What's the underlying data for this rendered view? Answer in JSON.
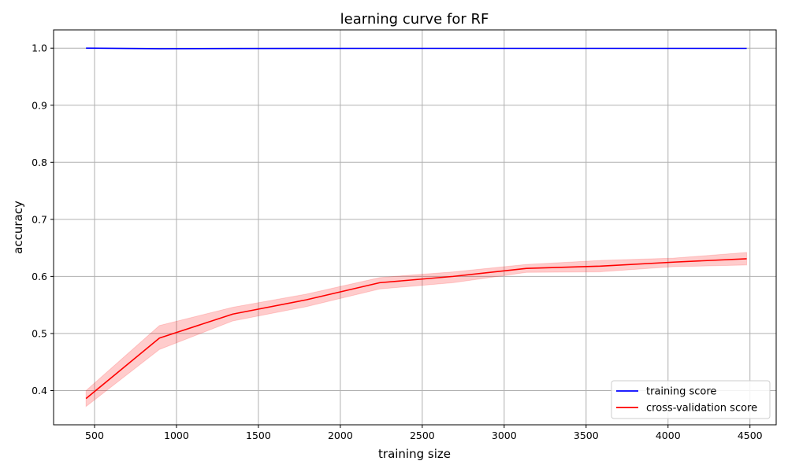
{
  "chart_data": {
    "type": "line",
    "title": "learning curve for RF",
    "xlabel": "training size",
    "ylabel": "accuracy",
    "xlim": [
      250,
      4660
    ],
    "ylim": [
      0.34,
      1.032
    ],
    "x_ticks": [
      500,
      1000,
      1500,
      2000,
      2500,
      3000,
      3500,
      4000,
      4500
    ],
    "y_ticks": [
      0.4,
      0.5,
      0.6,
      0.7,
      0.8,
      0.9,
      1.0
    ],
    "grid": true,
    "legend_position": "lower-right",
    "x": [
      448,
      896,
      1344,
      1792,
      2240,
      2688,
      3136,
      3584,
      4032,
      4480
    ],
    "series": [
      {
        "name": "training score",
        "color": "#0000ff",
        "values": [
          1.0,
          0.999,
          0.9993,
          0.9995,
          0.9996,
          0.9996,
          0.9996,
          0.9996,
          0.9996,
          0.9996
        ],
        "band_lower": [
          1.0,
          0.999,
          0.9993,
          0.9995,
          0.9996,
          0.9996,
          0.9996,
          0.9996,
          0.9996,
          0.9996
        ],
        "band_upper": [
          1.0,
          0.999,
          0.9993,
          0.9995,
          0.9996,
          0.9996,
          0.9996,
          0.9996,
          0.9996,
          0.9996
        ]
      },
      {
        "name": "cross-validation score",
        "color": "#ff0000",
        "band_color": "#ff0000",
        "values": [
          0.386,
          0.492,
          0.534,
          0.559,
          0.589,
          0.6,
          0.614,
          0.618,
          0.625,
          0.631
        ],
        "band_lower": [
          0.372,
          0.472,
          0.522,
          0.547,
          0.578,
          0.589,
          0.607,
          0.608,
          0.617,
          0.62
        ],
        "band_upper": [
          0.4,
          0.514,
          0.546,
          0.569,
          0.598,
          0.608,
          0.621,
          0.628,
          0.632,
          0.642
        ]
      }
    ]
  }
}
